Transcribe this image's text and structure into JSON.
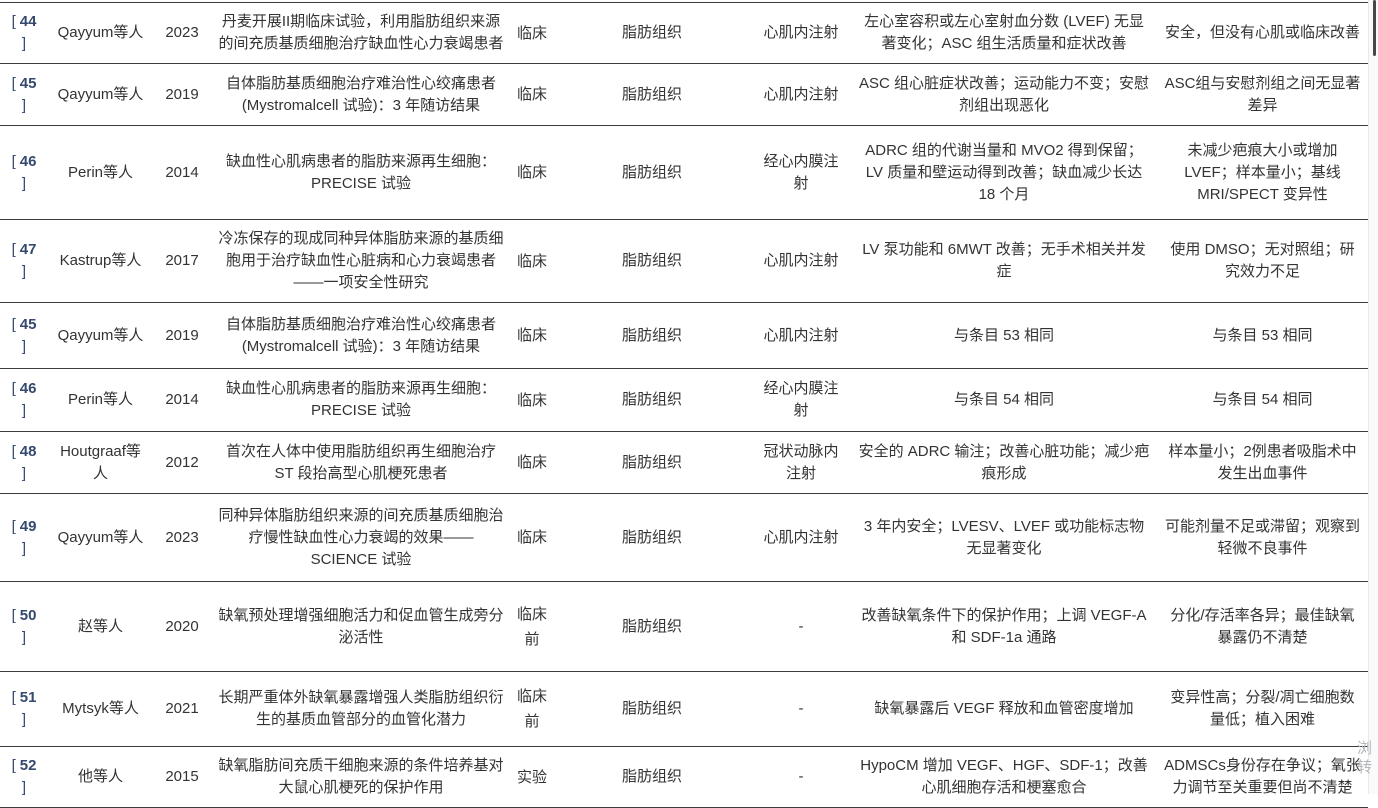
{
  "colors": {
    "citation": "#35496f",
    "body_text": "#333333",
    "row_border": "#3c3c3c",
    "scrollbar_thumb": "#474747",
    "watermark": "#b3b7bb"
  },
  "watermark": {
    "text": "浏转"
  },
  "table": {
    "ref_open": "[",
    "ref_close": "]",
    "rows": [
      {
        "ref": "44",
        "author": "Qayyum等人",
        "year": "2023",
        "title": "丹麦开展II期临床试验，利用脂肪组织来源的间充质基质细胞治疗缺血性心力衰竭患者",
        "type": "临床",
        "tissue": "脂肪组织",
        "injection": "心肌内注射",
        "results": "左心室容积或左心室射血分数 (LVEF) 无显著变化；ASC 组生活质量和症状改善",
        "comments": "安全，但没有心肌或临床改善"
      },
      {
        "ref": "45",
        "author": "Qayyum等人",
        "year": "2019",
        "title": "自体脂肪基质细胞治疗难治性心绞痛患者 (Mystromalcell 试验)：3 年随访结果",
        "type": "临床",
        "tissue": "脂肪组织",
        "injection": "心肌内注射",
        "results": "ASC 组心脏症状改善；运动能力不变；安慰剂组出现恶化",
        "comments": "ASC组与安慰剂组之间无显著差异"
      },
      {
        "ref": "46",
        "author": "Perin等人",
        "year": "2014",
        "title": "缺血性心肌病患者的脂肪来源再生细胞：PRECISE 试验",
        "type": "临床",
        "tissue": "脂肪组织",
        "injection": "经心内膜注射",
        "results": "ADRC 组的代谢当量和 MVO2 得到保留；LV 质量和壁运动得到改善；缺血减少长达 18 个月",
        "comments": "未减少疤痕大小或增加 LVEF；样本量小；基线 MRI/SPECT 变异性"
      },
      {
        "ref": "47",
        "author": "Kastrup等人",
        "year": "2017",
        "title": "冷冻保存的现成同种异体脂肪来源的基质细胞用于治疗缺血性心脏病和心力衰竭患者——一项安全性研究",
        "type": "临床",
        "tissue": "脂肪组织",
        "injection": "心肌内注射",
        "results": "LV 泵功能和 6MWT 改善；无手术相关并发症",
        "comments": "使用 DMSO；无对照组；研究效力不足"
      },
      {
        "ref": "45",
        "author": "Qayyum等人",
        "year": "2019",
        "title": "自体脂肪基质细胞治疗难治性心绞痛患者 (Mystromalcell 试验)：3 年随访结果",
        "type": "临床",
        "tissue": "脂肪组织",
        "injection": "心肌内注射",
        "results": "与条目 53 相同",
        "comments": "与条目 53 相同"
      },
      {
        "ref": "46",
        "author": "Perin等人",
        "year": "2014",
        "title": "缺血性心肌病患者的脂肪来源再生细胞：PRECISE 试验",
        "type": "临床",
        "tissue": "脂肪组织",
        "injection": "经心内膜注射",
        "results": "与条目 54 相同",
        "comments": "与条目 54 相同"
      },
      {
        "ref": "48",
        "author": "Houtgraaf等人",
        "year": "2012",
        "title": "首次在人体中使用脂肪组织再生细胞治疗 ST 段抬高型心肌梗死患者",
        "type": "临床",
        "tissue": "脂肪组织",
        "injection": "冠状动脉内注射",
        "results": "安全的 ADRC 输注；改善心脏功能；减少疤痕形成",
        "comments": "样本量小；2例患者吸脂术中发生出血事件"
      },
      {
        "ref": "49",
        "author": "Qayyum等人",
        "year": "2023",
        "title": "同种异体脂肪组织来源的间充质基质细胞治疗慢性缺血性心力衰竭的效果——SCIENCE 试验",
        "type": "临床",
        "tissue": "脂肪组织",
        "injection": "心肌内注射",
        "results": "3 年内安全；LVESV、LVEF 或功能标志物无显著变化",
        "comments": "可能剂量不足或滞留；观察到轻微不良事件"
      },
      {
        "ref": "50",
        "author": "赵等人",
        "year": "2020",
        "title": "缺氧预处理增强细胞活力和促血管生成旁分泌活性",
        "type": "临床前",
        "tissue": "脂肪组织",
        "injection": "-",
        "results": "改善缺氧条件下的保护作用；上调 VEGF-A 和 SDF-1a 通路",
        "comments": "分化/存活率各异；最佳缺氧暴露仍不清楚"
      },
      {
        "ref": "51",
        "author": "Mytsyk等人",
        "year": "2021",
        "title": "长期严重体外缺氧暴露增强人类脂肪组织衍生的基质血管部分的血管化潜力",
        "type": "临床前",
        "tissue": "脂肪组织",
        "injection": "-",
        "results": "缺氧暴露后 VEGF 释放和血管密度增加",
        "comments": "变异性高；分裂/凋亡细胞数量低；植入困难"
      },
      {
        "ref": "52",
        "author": "他等人",
        "year": "2015",
        "title": "缺氧脂肪间充质干细胞来源的条件培养基对大鼠心肌梗死的保护作用",
        "type": "实验",
        "tissue": "脂肪组织",
        "injection": "-",
        "results": "HypoCM 增加 VEGF、HGF、SDF-1；改善心肌细胞存活和梗塞愈合",
        "comments": "ADMSCs身份存在争议；氧张力调节至关重要但尚不清楚"
      }
    ]
  }
}
